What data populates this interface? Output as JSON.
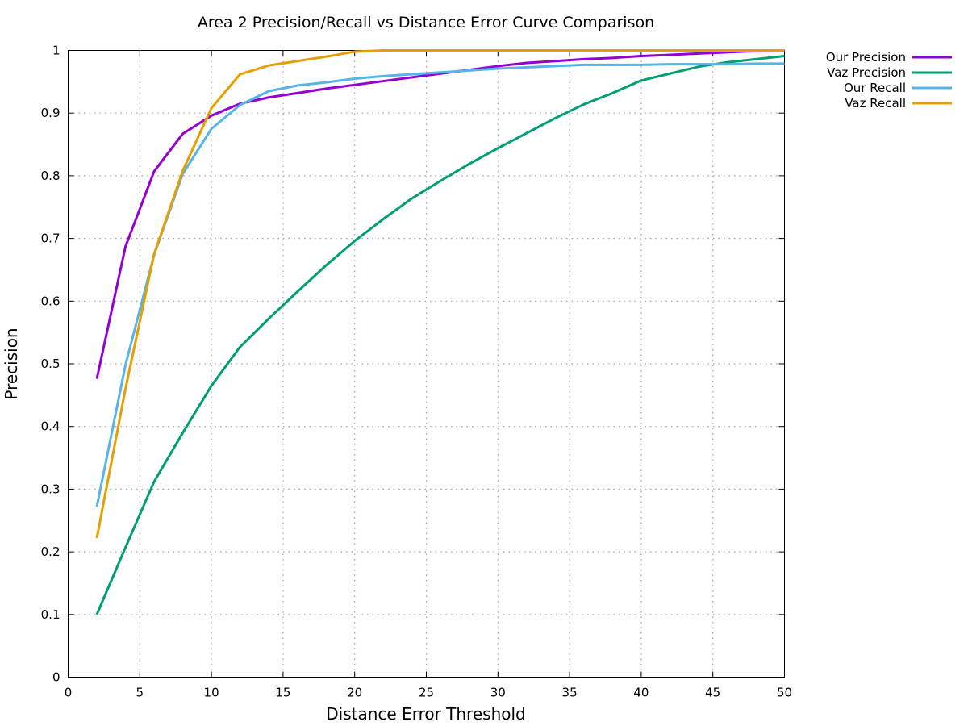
{
  "chart_data": {
    "type": "line",
    "title": "Area 2 Precision/Recall vs Distance Error Curve Comparison",
    "xlabel": "Distance Error Threshold",
    "ylabel": "Precision",
    "xlim": [
      0,
      50
    ],
    "ylim": [
      0,
      1
    ],
    "xticks": [
      "0",
      "5",
      "10",
      "15",
      "20",
      "25",
      "30",
      "35",
      "40",
      "45",
      "50"
    ],
    "yticks": [
      "0",
      "0.1",
      "0.2",
      "0.3",
      "0.4",
      "0.5",
      "0.6",
      "0.7",
      "0.8",
      "0.9",
      "1"
    ],
    "grid": true,
    "legend_position": "outside-top-right",
    "series": [
      {
        "name": "Our Precision",
        "color": "#9400d3",
        "x": [
          2,
          4,
          6,
          8,
          10,
          12,
          14,
          16,
          18,
          20,
          22,
          24,
          26,
          28,
          30,
          32,
          34,
          36,
          38,
          40,
          42,
          44,
          46,
          48,
          50
        ],
        "y": [
          0.476,
          0.687,
          0.807,
          0.867,
          0.896,
          0.915,
          0.925,
          0.932,
          0.939,
          0.945,
          0.951,
          0.957,
          0.963,
          0.969,
          0.975,
          0.98,
          0.983,
          0.986,
          0.988,
          0.991,
          0.993,
          0.995,
          0.997,
          0.999,
          1.0
        ]
      },
      {
        "name": "Vaz Precision",
        "color": "#009e73",
        "x": [
          2,
          4,
          6,
          8,
          10,
          12,
          14,
          16,
          18,
          20,
          22,
          24,
          26,
          28,
          30,
          32,
          34,
          36,
          38,
          40,
          42,
          44,
          46,
          48,
          50
        ],
        "y": [
          0.1,
          0.207,
          0.312,
          0.39,
          0.465,
          0.527,
          0.572,
          0.615,
          0.657,
          0.696,
          0.731,
          0.764,
          0.792,
          0.819,
          0.844,
          0.868,
          0.892,
          0.914,
          0.932,
          0.952,
          0.963,
          0.974,
          0.981,
          0.986,
          0.991
        ]
      },
      {
        "name": "Our Recall",
        "color": "#56b4e9",
        "x": [
          2,
          4,
          6,
          8,
          10,
          12,
          14,
          16,
          18,
          20,
          22,
          24,
          26,
          28,
          30,
          32,
          34,
          36,
          38,
          40,
          42,
          44,
          46,
          48,
          50
        ],
        "y": [
          0.272,
          0.498,
          0.674,
          0.803,
          0.875,
          0.913,
          0.935,
          0.944,
          0.949,
          0.955,
          0.959,
          0.962,
          0.965,
          0.968,
          0.971,
          0.973,
          0.975,
          0.977,
          0.977,
          0.977,
          0.978,
          0.978,
          0.978,
          0.979,
          0.979
        ]
      },
      {
        "name": "Vaz Recall",
        "color": "#e69f00",
        "x": [
          2,
          4,
          6,
          8,
          10,
          12,
          14,
          16,
          18,
          20,
          22,
          24,
          26,
          28,
          30,
          32,
          34,
          36,
          38,
          40,
          42,
          44,
          46,
          48,
          50
        ],
        "y": [
          0.222,
          0.46,
          0.675,
          0.808,
          0.908,
          0.962,
          0.976,
          0.983,
          0.99,
          0.998,
          1.0,
          1.0,
          1.0,
          1.0,
          1.0,
          1.0,
          1.0,
          1.0,
          1.0,
          1.0,
          1.0,
          1.0,
          1.0,
          1.0,
          1.0
        ]
      }
    ]
  }
}
